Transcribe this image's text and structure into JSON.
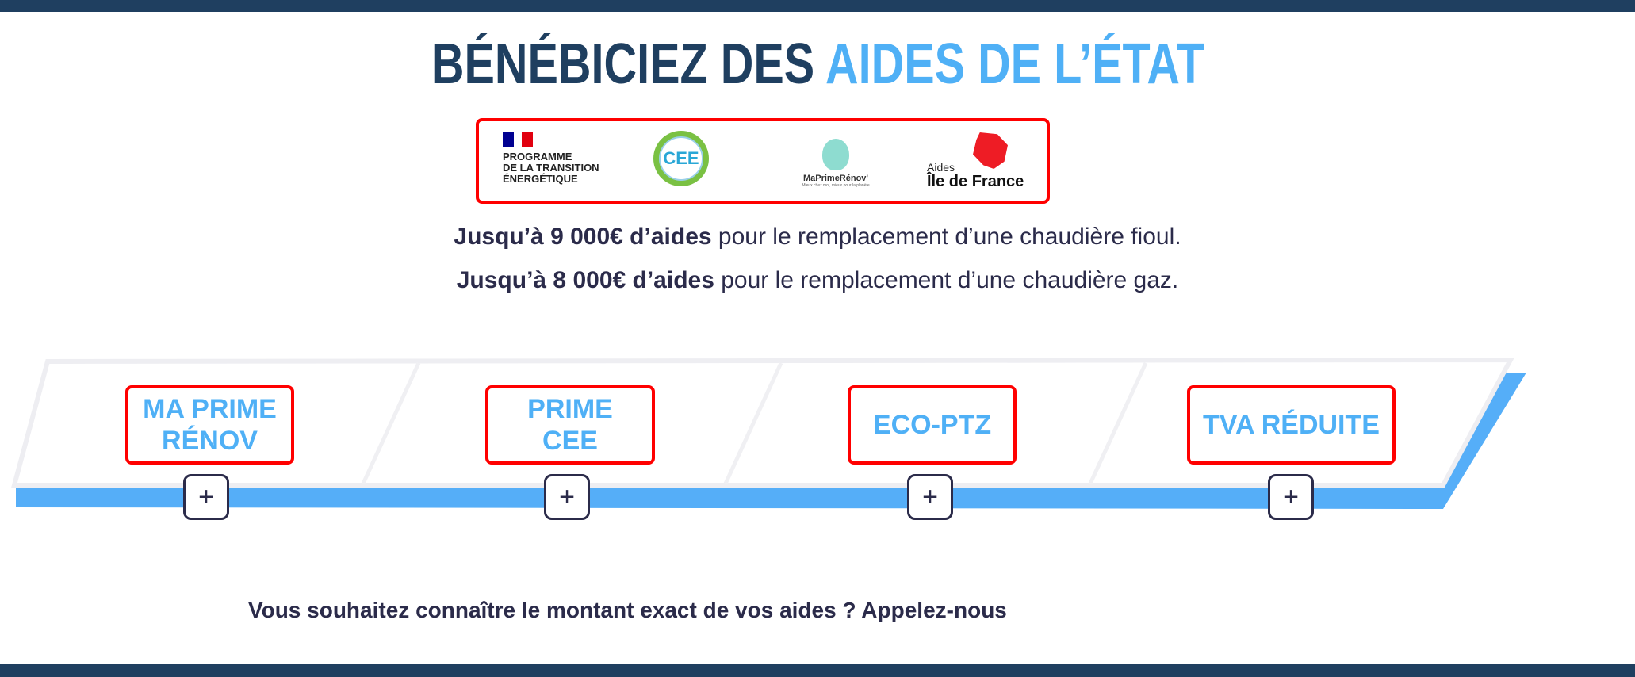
{
  "header": {
    "title_dark": "BÉNÉBICIEZ DES",
    "title_light": "AIDES DE L’ÉTAT"
  },
  "logos": {
    "programme": [
      "PROGRAMME",
      "DE LA TRANSITION",
      "ÉNERGÉTIQUE"
    ],
    "cee": "CEE",
    "maprimerenov": "MaPrimeRénov'",
    "maprimerenov_tagline": "Mieux chez moi, mieux pour la planète",
    "idf_small": "Aides",
    "idf_big": "Île de France"
  },
  "intro": [
    {
      "bold": "Jusqu’à 9 000€ d’aides",
      "rest": " pour le remplacement d’une chaudière fioul."
    },
    {
      "bold": "Jusqu’à 8 000€ d’aides",
      "rest": " pour le remplacement d’une chaudière gaz."
    }
  ],
  "aids": [
    {
      "label": "MA PRIME RÉNOV",
      "expand": "+"
    },
    {
      "label": "PRIME CEE",
      "expand": "+"
    },
    {
      "label": "ECO-PTZ",
      "expand": "+"
    },
    {
      "label": "TVA RÉDUITE",
      "expand": "+"
    }
  ],
  "cta": "Vous souhaitez connaître le montant exact de vos aides ? Appelez-nous",
  "colors": {
    "navy": "#1f3f60",
    "accent": "#4fb0f6",
    "highlight": "#ff0000",
    "stripe": "#55aef8"
  }
}
